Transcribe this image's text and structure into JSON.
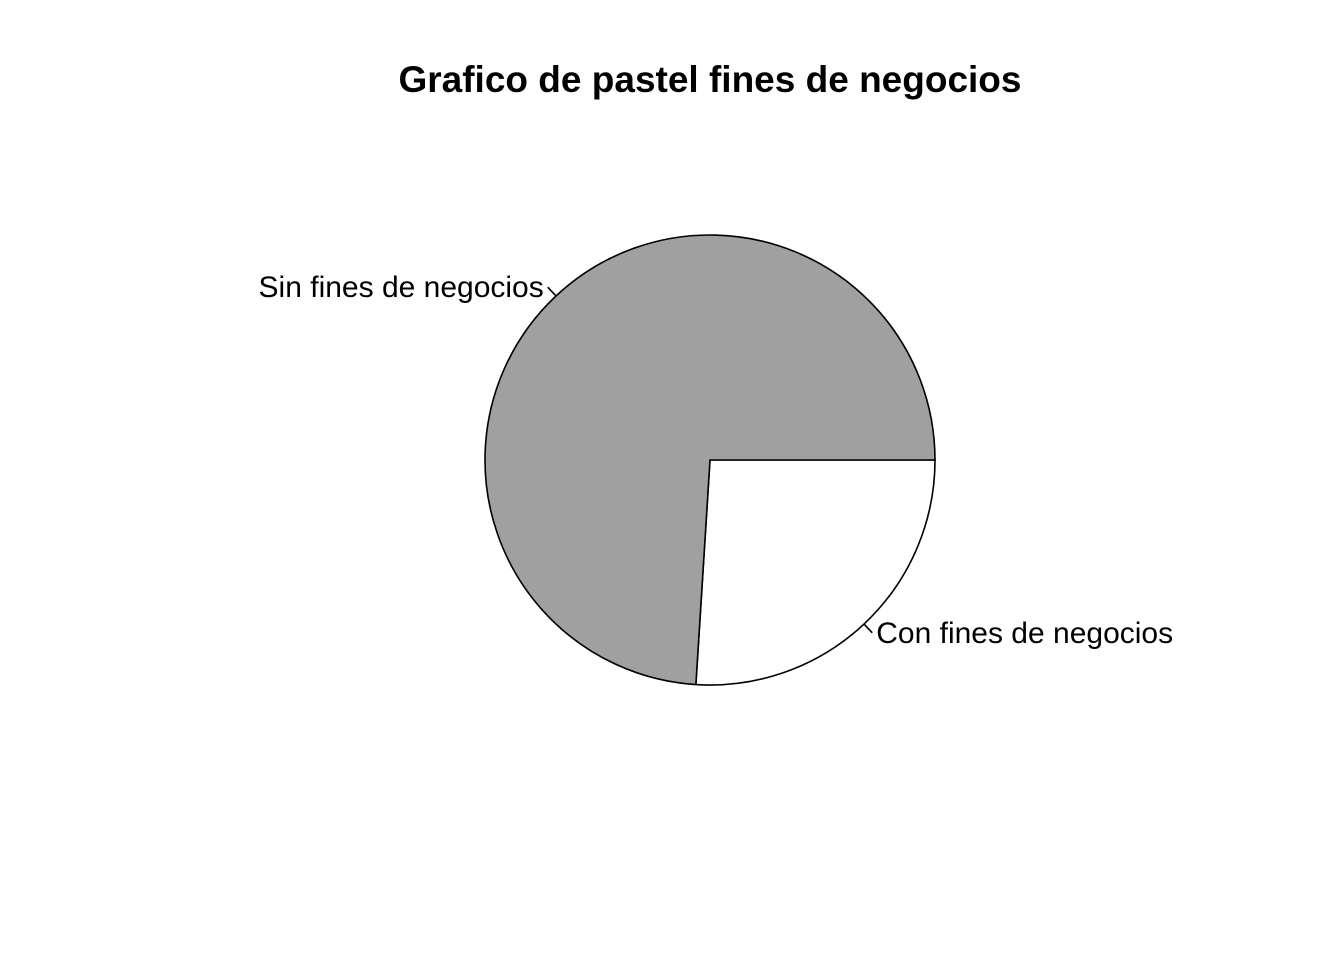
{
  "chart_data": {
    "type": "pie",
    "title": "Grafico de pastel fines de negocios",
    "slices": [
      {
        "label": "Con fines de negocios",
        "value": 26.0,
        "color": "#ffffff"
      },
      {
        "label": "Sin fines de negocios",
        "value": 74.0,
        "color": "#a0a0a0"
      }
    ],
    "start_angle": "3 o'clock",
    "direction": "clockwise",
    "legend": "none"
  }
}
